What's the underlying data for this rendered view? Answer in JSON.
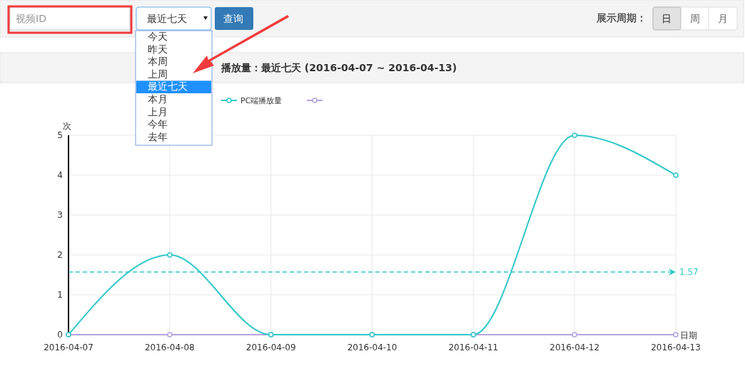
{
  "chart_data": {
    "type": "line",
    "title": "播放量：最近七天 (2016-04-07 ~ 2016-04-13)",
    "ylabel": "次",
    "xlabel": "日期",
    "categories": [
      "2016-04-07",
      "2016-04-08",
      "2016-04-09",
      "2016-04-10",
      "2016-04-11",
      "2016-04-12",
      "2016-04-13"
    ],
    "series": [
      {
        "name": "PC端播放量",
        "color": "#2ec7c9",
        "values": [
          0,
          2,
          0,
          0,
          0,
          5,
          4
        ]
      },
      {
        "color": "#b6a2de",
        "values": [
          0,
          0,
          0,
          0,
          0,
          0,
          0
        ]
      }
    ],
    "ylim": [
      0,
      5
    ],
    "yticks": [
      0,
      1,
      2,
      3,
      4,
      5
    ],
    "grid": true,
    "legend": "top left",
    "marker": "circle",
    "line_style": "solid",
    "ref_lines": [
      {
        "axis": "y",
        "value": 1.57,
        "label": "1.57",
        "color": "#2ec7c9",
        "line_style": "dashed"
      }
    ],
    "annotations": [
      "视频ID",
      "最近七天",
      "查询",
      "展示周期：",
      "日",
      "周",
      "月",
      "今天",
      "昨天",
      "本周",
      "上周",
      "最近七天",
      "本月",
      "上月",
      "今年",
      "去年"
    ]
  }
}
